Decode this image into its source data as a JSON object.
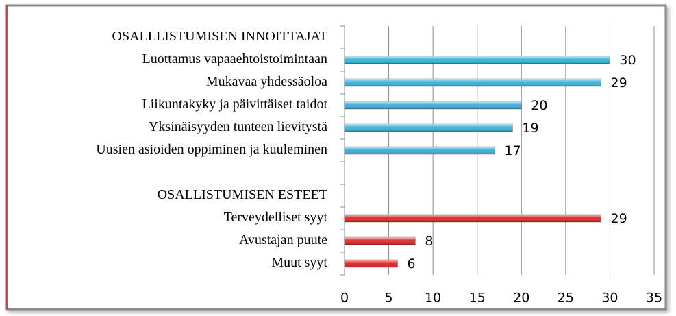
{
  "chart_data": {
    "type": "hbar",
    "categories": [
      "OSALLLISTUMISEN INNOITTAJAT",
      "Luottamus vapaaehtoistoimintaan",
      "Mukavaa yhdessäoloa",
      "Liikuntakyky ja päivittäiset taidot",
      "Yksinäisyyden tunteen lievitystä",
      "Uusien asioiden oppiminen ja kuuleminen",
      null,
      "OSALLISTUMISEN ESTEET",
      "Terveydelliset syyt",
      "Avustajan puute",
      "Muut syyt"
    ],
    "values": [
      null,
      30,
      29,
      20,
      19,
      17,
      null,
      null,
      29,
      8,
      6
    ],
    "colors": [
      null,
      "#3cb2d8",
      "#3cb2d8",
      "#3cb2d8",
      "#3cb2d8",
      "#3cb2d8",
      null,
      null,
      "#e02a2a",
      "#e02a2a",
      "#e02a2a"
    ],
    "xlim": [
      0,
      35
    ],
    "xticks": [
      0,
      5,
      10,
      15,
      20,
      25,
      30,
      35
    ],
    "grid": true
  }
}
